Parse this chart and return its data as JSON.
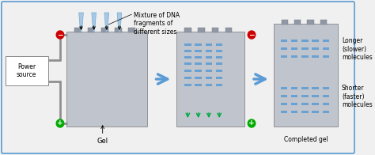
{
  "bg_color": "#f0f0f0",
  "border_color": "#5b9bd5",
  "gel_color": "#c0c4cc",
  "gel_notch_color": "#9098a8",
  "band_color": "#5b9bd5",
  "arrow_color": "#5b9bd5",
  "green_arrow_color": "#00aa44",
  "wire_color": "#909090",
  "minus_color": "#cc0000",
  "plus_color": "#00aa00",
  "tube_color": "#a8c8e8",
  "tube_dark": "#7aaac8",
  "power_box_color": "#ffffff",
  "label_mixture": "Mixture of DNA\nfragments of\ndifferent sizes",
  "label_gel": "Gel",
  "label_power": "Power\nsource",
  "label_completed": "Completed gel",
  "label_longer": "Longer\n(slower)\nmolecules",
  "label_shorter": "Shorter\n(faster)\nmolecules",
  "font_size": 5.5
}
